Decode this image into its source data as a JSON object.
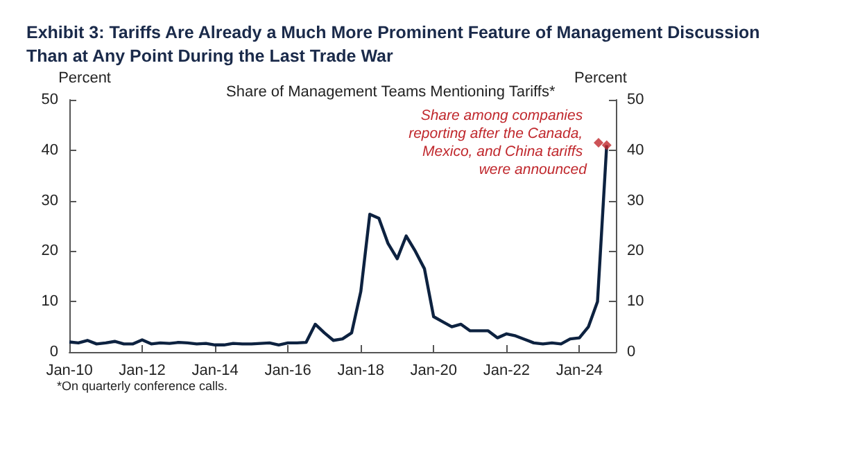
{
  "chart_data": {
    "type": "line",
    "title": "Exhibit 3: Tariffs Are Already a Much More Prominent Feature of Management Discussion Than at Any Point During the Last Trade War",
    "subtitle": "Share of Management Teams Mentioning Tariffs*",
    "ylabel": "Percent",
    "y2label": "Percent",
    "x": [
      "2010-01",
      "2010-04",
      "2010-07",
      "2010-10",
      "2011-01",
      "2011-04",
      "2011-07",
      "2011-10",
      "2012-01",
      "2012-04",
      "2012-07",
      "2012-10",
      "2013-01",
      "2013-04",
      "2013-07",
      "2013-10",
      "2014-01",
      "2014-04",
      "2014-07",
      "2014-10",
      "2015-01",
      "2015-04",
      "2015-07",
      "2015-10",
      "2016-01",
      "2016-04",
      "2016-07",
      "2016-10",
      "2017-01",
      "2017-04",
      "2017-07",
      "2017-10",
      "2018-01",
      "2018-04",
      "2018-07",
      "2018-10",
      "2019-01",
      "2019-04",
      "2019-07",
      "2019-10",
      "2020-01",
      "2020-04",
      "2020-07",
      "2020-10",
      "2021-01",
      "2021-04",
      "2021-07",
      "2021-10",
      "2022-01",
      "2022-04",
      "2022-07",
      "2022-10",
      "2023-01",
      "2023-04",
      "2023-07",
      "2023-10",
      "2024-01",
      "2024-04",
      "2024-07",
      "2024-10"
    ],
    "series": [
      {
        "color": "#0d2240",
        "marker": "none",
        "values": [
          2.0,
          1.8,
          2.3,
          1.6,
          1.8,
          2.1,
          1.6,
          1.6,
          2.4,
          1.6,
          1.8,
          1.7,
          1.9,
          1.8,
          1.6,
          1.7,
          1.4,
          1.4,
          1.7,
          1.6,
          1.6,
          1.7,
          1.8,
          1.4,
          1.8,
          1.8,
          1.9,
          5.5,
          3.8,
          2.3,
          2.6,
          3.8,
          12,
          27.3,
          26.5,
          21.5,
          18.5,
          23,
          20,
          16.5,
          7,
          6,
          5,
          5.5,
          4.2,
          4.2,
          4.2,
          2.8,
          3.6,
          3.2,
          2.5,
          1.8,
          1.6,
          1.8,
          1.6,
          2.6,
          2.8,
          5,
          10,
          41
        ]
      },
      {
        "type": "scatter",
        "name": "Share among companies reporting after the Canada, Mexico, and China tariffs were announced",
        "color": "#c0282d",
        "marker": "diamond",
        "x": [
          "2024-10"
        ],
        "values": [
          41
        ]
      }
    ],
    "xlim": [
      "2010-01",
      "2025-01"
    ],
    "xticks": [
      {
        "value": "2010-01",
        "label": "Jan-10"
      },
      {
        "value": "2012-01",
        "label": "Jan-12"
      },
      {
        "value": "2014-01",
        "label": "Jan-14"
      },
      {
        "value": "2016-01",
        "label": "Jan-16"
      },
      {
        "value": "2018-01",
        "label": "Jan-18"
      },
      {
        "value": "2020-01",
        "label": "Jan-20"
      },
      {
        "value": "2022-01",
        "label": "Jan-22"
      },
      {
        "value": "2024-01",
        "label": "Jan-24"
      }
    ],
    "ylim": [
      0,
      50
    ],
    "yticks": [
      0,
      10,
      20,
      30,
      40,
      50
    ],
    "y2lim": [
      0,
      50
    ],
    "y2ticks": [
      0,
      10,
      20,
      30,
      40,
      50
    ],
    "grid": false,
    "legend": "top right",
    "annotations": [
      "*On quarterly conference calls."
    ]
  }
}
